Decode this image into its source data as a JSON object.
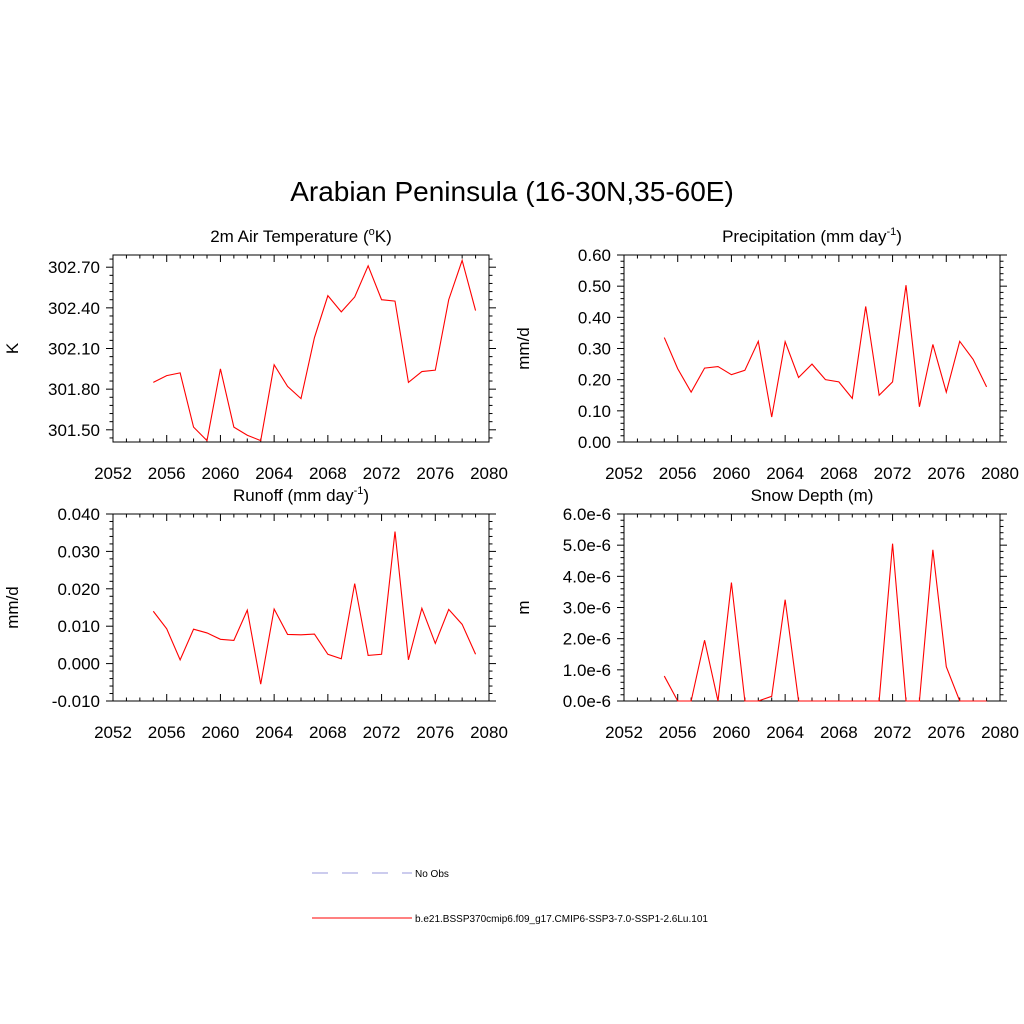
{
  "title": "Arabian Peninsula (16-30N,35-60E)",
  "colors": {
    "series": "#ff0000",
    "obs": "#9999dd",
    "axis": "#000000"
  },
  "legend": [
    {
      "label": "No Obs",
      "style": "dashed"
    },
    {
      "label": "b.e21.BSSP370cmip6.f09_g17.CMIP6-SSP3-7.0-SSP1-2.6Lu.101",
      "style": "solid"
    }
  ],
  "chart_data": [
    {
      "type": "line",
      "title": "2m Air Temperature (oK)",
      "title_parts": [
        "2m Air Temperature (",
        "o",
        "K)"
      ],
      "ylabel": "K",
      "xlim": [
        2052,
        2080
      ],
      "xticks": [
        2052,
        2056,
        2060,
        2064,
        2068,
        2072,
        2076,
        2080
      ],
      "ylim": [
        301.41,
        302.79
      ],
      "yticks": [
        301.5,
        301.8,
        302.1,
        302.4,
        302.7
      ],
      "ytick_labels": [
        "301.50",
        "301.80",
        "302.10",
        "302.40",
        "302.70"
      ],
      "x": [
        2055,
        2056,
        2057,
        2058,
        2059,
        2060,
        2061,
        2062,
        2063,
        2064,
        2065,
        2066,
        2067,
        2068,
        2069,
        2070,
        2071,
        2072,
        2073,
        2074,
        2075,
        2076,
        2077,
        2078,
        2079
      ],
      "series": [
        {
          "name": "b.e21.BSSP370cmip6.f09_g17.CMIP6-SSP3-7.0-SSP1-2.6Lu.101",
          "values": [
            301.85,
            301.9,
            301.92,
            301.52,
            301.42,
            301.95,
            301.52,
            301.46,
            301.42,
            301.98,
            301.82,
            301.73,
            302.18,
            302.49,
            302.37,
            302.48,
            302.71,
            302.46,
            302.45,
            301.85,
            301.93,
            301.94,
            302.46,
            302.75,
            302.38
          ]
        }
      ]
    },
    {
      "type": "line",
      "title": "Precipitation (mm day-1)",
      "title_parts": [
        "Precipitation (mm day",
        "-1",
        ")"
      ],
      "ylabel": "mm/d",
      "xlim": [
        2052,
        2080
      ],
      "xticks": [
        2052,
        2056,
        2060,
        2064,
        2068,
        2072,
        2076,
        2080
      ],
      "ylim": [
        0.0,
        0.6
      ],
      "yticks": [
        0.0,
        0.1,
        0.2,
        0.3,
        0.4,
        0.5,
        0.6
      ],
      "ytick_labels": [
        "0.00",
        "0.10",
        "0.20",
        "0.30",
        "0.40",
        "0.50",
        "0.60"
      ],
      "x": [
        2055,
        2056,
        2057,
        2058,
        2059,
        2060,
        2061,
        2062,
        2063,
        2064,
        2065,
        2066,
        2067,
        2068,
        2069,
        2070,
        2071,
        2072,
        2073,
        2074,
        2075,
        2076,
        2077,
        2078,
        2079
      ],
      "series": [
        {
          "name": "b.e21.BSSP370cmip6.f09_g17.CMIP6-SSP3-7.0-SSP1-2.6Lu.101",
          "values": [
            0.335,
            0.235,
            0.16,
            0.237,
            0.242,
            0.216,
            0.23,
            0.323,
            0.08,
            0.322,
            0.207,
            0.25,
            0.2,
            0.193,
            0.14,
            0.435,
            0.15,
            0.193,
            0.503,
            0.113,
            0.313,
            0.16,
            0.323,
            0.265,
            0.177
          ]
        }
      ]
    },
    {
      "type": "line",
      "title": "Runoff (mm day-1)",
      "title_parts": [
        "Runoff (mm day",
        "-1",
        ")"
      ],
      "ylabel": "mm/d",
      "xlim": [
        2052,
        2080
      ],
      "xticks": [
        2052,
        2056,
        2060,
        2064,
        2068,
        2072,
        2076,
        2080
      ],
      "ylim": [
        -0.01,
        0.04
      ],
      "yticks": [
        -0.01,
        0.0,
        0.01,
        0.02,
        0.03,
        0.04
      ],
      "ytick_labels": [
        "-0.010",
        "0.000",
        "0.010",
        "0.020",
        "0.030",
        "0.040"
      ],
      "x": [
        2055,
        2056,
        2057,
        2058,
        2059,
        2060,
        2061,
        2062,
        2063,
        2064,
        2065,
        2066,
        2067,
        2068,
        2069,
        2070,
        2071,
        2072,
        2073,
        2074,
        2075,
        2076,
        2077,
        2078,
        2079
      ],
      "series": [
        {
          "name": "b.e21.BSSP370cmip6.f09_g17.CMIP6-SSP3-7.0-SSP1-2.6Lu.101",
          "values": [
            0.014,
            0.0093,
            0.001,
            0.0092,
            0.0082,
            0.0065,
            0.0062,
            0.0143,
            -0.0055,
            0.0146,
            0.0078,
            0.0077,
            0.0079,
            0.0025,
            0.0013,
            0.0214,
            0.0022,
            0.0025,
            0.0353,
            0.001,
            0.0148,
            0.0054,
            0.0145,
            0.0105,
            0.0025
          ]
        }
      ]
    },
    {
      "type": "line",
      "title": "Snow Depth (m)",
      "title_parts": [
        "Snow Depth (m)",
        "",
        ""
      ],
      "ylabel": "m",
      "xlim": [
        2052,
        2080
      ],
      "xticks": [
        2052,
        2056,
        2060,
        2064,
        2068,
        2072,
        2076,
        2080
      ],
      "ylim": [
        0.0,
        6e-06
      ],
      "yticks": [
        0.0,
        1e-06,
        2e-06,
        3e-06,
        4e-06,
        5e-06,
        6e-06
      ],
      "ytick_labels": [
        "0.0e-6",
        "1.0e-6",
        "2.0e-6",
        "3.0e-6",
        "4.0e-6",
        "5.0e-6",
        "6.0e-6"
      ],
      "x": [
        2055,
        2056,
        2057,
        2058,
        2059,
        2060,
        2061,
        2062,
        2063,
        2064,
        2065,
        2066,
        2067,
        2068,
        2069,
        2070,
        2071,
        2072,
        2073,
        2074,
        2075,
        2076,
        2077,
        2078,
        2079
      ],
      "series": [
        {
          "name": "b.e21.BSSP370cmip6.f09_g17.CMIP6-SSP3-7.0-SSP1-2.6Lu.101",
          "values": [
            8e-07,
            0.0,
            0.0,
            1.95e-06,
            0.0,
            3.8e-06,
            0.0,
            0.0,
            1.5e-07,
            3.25e-06,
            0.0,
            0.0,
            0.0,
            0.0,
            0.0,
            0.0,
            0.0,
            5.05e-06,
            0.0,
            0.0,
            4.85e-06,
            1.1e-06,
            0.0,
            0.0,
            0.0
          ]
        }
      ]
    }
  ]
}
